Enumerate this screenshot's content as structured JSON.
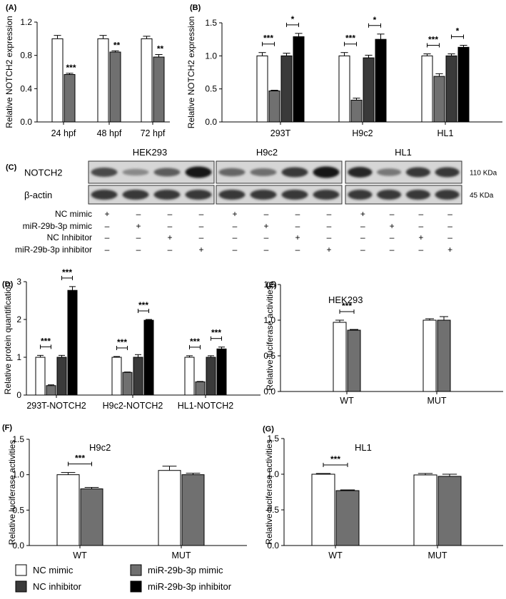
{
  "legend": [
    {
      "label": "NC mimic",
      "color": "#ffffff"
    },
    {
      "label": "miR-29b-3p mimic",
      "color": "#707070"
    },
    {
      "label": "NC inhibitor",
      "color": "#3a3a3a"
    },
    {
      "label": "miR-29b-3p inhibitor",
      "color": "#000000"
    }
  ],
  "chart_data": [
    {
      "panel": "(A)",
      "type": "bar",
      "ylabel": "Relative NOTCH2 expression",
      "ylim": [
        0,
        1.2
      ],
      "yticks": [
        "0.0",
        "0.4",
        "0.8",
        "1.2"
      ],
      "categories": [
        "24 hpf",
        "48 hpf",
        "72 hpf"
      ],
      "series": [
        {
          "color": "#ffffff",
          "values": [
            1.0,
            1.0,
            1.0
          ],
          "errors": [
            0.04,
            0.04,
            0.03
          ]
        },
        {
          "color": "#707070",
          "values": [
            0.57,
            0.84,
            0.78
          ],
          "errors": [
            0.015,
            0.015,
            0.03
          ]
        }
      ],
      "annotations": [
        {
          "category": 0,
          "series": 1,
          "text": "***"
        },
        {
          "category": 1,
          "series": 1,
          "text": "**"
        },
        {
          "category": 2,
          "series": 1,
          "text": "**"
        }
      ]
    },
    {
      "panel": "(B)",
      "type": "bar",
      "ylabel": "Relative NOTCH2 expression",
      "ylim": [
        0,
        1.5
      ],
      "yticks": [
        "0.0",
        "0.5",
        "1.0",
        "1.5"
      ],
      "categories": [
        "293T",
        "H9c2",
        "HL1"
      ],
      "series": [
        {
          "color": "#ffffff",
          "values": [
            1.0,
            1.0,
            1.0
          ],
          "errors": [
            0.05,
            0.05,
            0.03
          ]
        },
        {
          "color": "#707070",
          "values": [
            0.47,
            0.33,
            0.69
          ],
          "errors": [
            0.01,
            0.03,
            0.04
          ]
        },
        {
          "color": "#3a3a3a",
          "values": [
            1.0,
            0.97,
            1.0
          ],
          "errors": [
            0.04,
            0.04,
            0.03
          ]
        },
        {
          "color": "#000000",
          "values": [
            1.29,
            1.25,
            1.13
          ],
          "errors": [
            0.05,
            0.08,
            0.03
          ]
        }
      ],
      "brackets": [
        {
          "category": 0,
          "from": 0,
          "to": 1,
          "text": "***"
        },
        {
          "category": 0,
          "from": 2,
          "to": 3,
          "text": "*"
        },
        {
          "category": 1,
          "from": 0,
          "to": 1,
          "text": "***"
        },
        {
          "category": 1,
          "from": 2,
          "to": 3,
          "text": "*"
        },
        {
          "category": 2,
          "from": 0,
          "to": 1,
          "text": "***"
        },
        {
          "category": 2,
          "from": 2,
          "to": 3,
          "text": "*"
        }
      ]
    },
    {
      "panel": "(D)",
      "type": "bar",
      "ylabel": "Relative protein quantification",
      "ylim": [
        0,
        3
      ],
      "yticks": [
        "0",
        "1",
        "2",
        "3"
      ],
      "categories": [
        "293T-NOTCH2",
        "H9c2-NOTCH2",
        "HL1-NOTCH2"
      ],
      "series": [
        {
          "color": "#ffffff",
          "values": [
            1.0,
            1.0,
            1.0
          ],
          "errors": [
            0.05,
            0.02,
            0.04
          ]
        },
        {
          "color": "#707070",
          "values": [
            0.25,
            0.6,
            0.35
          ],
          "errors": [
            0.02,
            0.01,
            0.01
          ]
        },
        {
          "color": "#3a3a3a",
          "values": [
            1.0,
            1.0,
            1.0
          ],
          "errors": [
            0.05,
            0.07,
            0.04
          ]
        },
        {
          "color": "#000000",
          "values": [
            2.77,
            1.98,
            1.22
          ],
          "errors": [
            0.1,
            0.02,
            0.05
          ]
        }
      ],
      "brackets": [
        {
          "category": 0,
          "from": 0,
          "to": 1,
          "text": "***"
        },
        {
          "category": 0,
          "from": 2,
          "to": 3,
          "text": "***"
        },
        {
          "category": 1,
          "from": 0,
          "to": 1,
          "text": "***"
        },
        {
          "category": 1,
          "from": 2,
          "to": 3,
          "text": "***"
        },
        {
          "category": 2,
          "from": 0,
          "to": 1,
          "text": "***"
        },
        {
          "category": 2,
          "from": 2,
          "to": 3,
          "text": "***"
        }
      ]
    },
    {
      "panel": "(E)",
      "type": "bar",
      "title": "HEK293",
      "ylabel": "Relative luciferase activities",
      "ylim": [
        0,
        1.5
      ],
      "yticks": [
        "0.0",
        "0.5",
        "1.0",
        "1.5"
      ],
      "categories": [
        "WT",
        "MUT"
      ],
      "series": [
        {
          "color": "#ffffff",
          "values": [
            0.97,
            1.0
          ],
          "errors": [
            0.03,
            0.02
          ]
        },
        {
          "color": "#707070",
          "values": [
            0.86,
            1.0
          ],
          "errors": [
            0.01,
            0.05
          ]
        }
      ],
      "brackets": [
        {
          "category": 0,
          "from": 0,
          "to": 1,
          "text": "***"
        }
      ]
    },
    {
      "panel": "(F)",
      "type": "bar",
      "title": "H9c2",
      "ylabel": "Relative luciferase activities",
      "ylim": [
        0,
        1.5
      ],
      "yticks": [
        "0.0",
        "0.5",
        "1.0",
        "1.5"
      ],
      "categories": [
        "WT",
        "MUT"
      ],
      "series": [
        {
          "color": "#ffffff",
          "values": [
            1.0,
            1.06
          ],
          "errors": [
            0.03,
            0.06
          ]
        },
        {
          "color": "#707070",
          "values": [
            0.8,
            1.0
          ],
          "errors": [
            0.02,
            0.02
          ]
        }
      ],
      "brackets": [
        {
          "category": 0,
          "from": 0,
          "to": 1,
          "text": "***"
        }
      ]
    },
    {
      "panel": "(G)",
      "type": "bar",
      "title": "HL1",
      "ylabel": "Relative luciferase activities",
      "ylim": [
        0,
        1.5
      ],
      "yticks": [
        "0.0",
        "0.5",
        "1.0",
        "1.5"
      ],
      "categories": [
        "WT",
        "MUT"
      ],
      "series": [
        {
          "color": "#ffffff",
          "values": [
            1.0,
            0.99
          ],
          "errors": [
            0.01,
            0.02
          ]
        },
        {
          "color": "#707070",
          "values": [
            0.77,
            0.97
          ],
          "errors": [
            0.01,
            0.03
          ]
        }
      ],
      "brackets": [
        {
          "category": 0,
          "from": 0,
          "to": 1,
          "text": "***"
        }
      ]
    }
  ],
  "blot": {
    "panel": "(C)",
    "cell_lines": [
      "HEK293",
      "H9c2",
      "HL1"
    ],
    "rows": [
      {
        "label": "NOTCH2",
        "size": "110 KDa",
        "intensity": [
          [
            0.7,
            0.35,
            0.6,
            1.0
          ],
          [
            0.55,
            0.5,
            0.8,
            1.0
          ],
          [
            0.9,
            0.45,
            0.8,
            0.8
          ]
        ]
      },
      {
        "label": "β-actin",
        "size": "45 KDa",
        "intensity": [
          [
            0.8,
            0.8,
            0.8,
            0.8
          ],
          [
            0.8,
            0.8,
            0.8,
            0.8
          ],
          [
            0.8,
            0.8,
            0.8,
            0.8
          ]
        ]
      }
    ],
    "treatments": [
      {
        "label": "NC mimic",
        "marks": [
          "+",
          "–",
          "–",
          "–",
          "+",
          "–",
          "–",
          "–",
          "+",
          "–",
          "–",
          "–"
        ]
      },
      {
        "label": "miR-29b-3p mimic",
        "marks": [
          "–",
          "+",
          "–",
          "–",
          "–",
          "+",
          "–",
          "–",
          "–",
          "+",
          "–",
          "–"
        ]
      },
      {
        "label": "NC Inhibitor",
        "marks": [
          "–",
          "–",
          "+",
          "–",
          "–",
          "–",
          "+",
          "–",
          "–",
          "–",
          "+",
          "–"
        ]
      },
      {
        "label": "miR-29b-3p inhibitor",
        "marks": [
          "–",
          "–",
          "–",
          "+",
          "–",
          "–",
          "–",
          "+",
          "–",
          "–",
          "–",
          "+"
        ]
      }
    ]
  }
}
